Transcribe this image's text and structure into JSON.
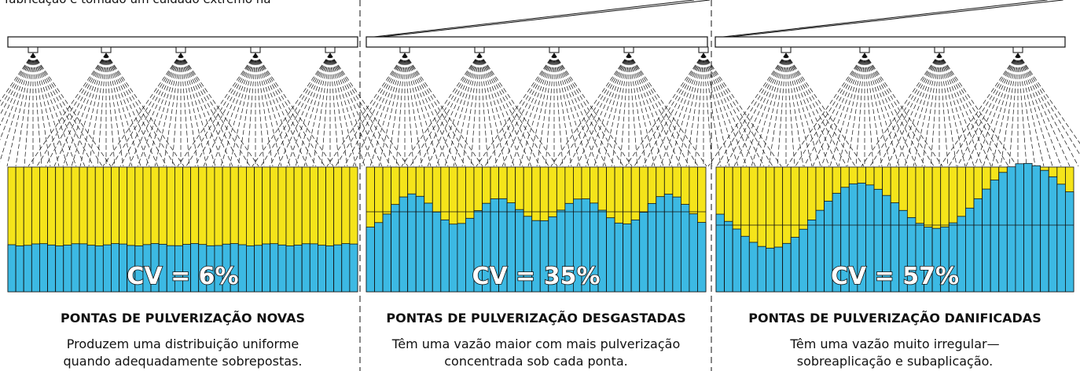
{
  "intro_text": "fabricação é tomado um cuidado extremo na",
  "panels": [
    {
      "cv_label": "CV = 6%",
      "title": "PONTAS DE PULVERIZAÇÃO NOVAS",
      "description": [
        "Produzem uma distribuição uniforme",
        "quando adequadamente sobrepostas."
      ]
    },
    {
      "cv_label": "CV = 35%",
      "title": "PONTAS DE PULVERIZAÇÃO DESGASTADAS",
      "description": [
        "Têm uma vazão maior com mais pulverização",
        "concentrada sob cada ponta."
      ]
    },
    {
      "cv_label": "CV = 57%",
      "title": "PONTAS DE PULVERIZAÇÃO DANIFICADAS",
      "description": [
        "Têm uma vazão muito irregular—",
        "sobreaplicação e subaplicação."
      ]
    }
  ]
}
